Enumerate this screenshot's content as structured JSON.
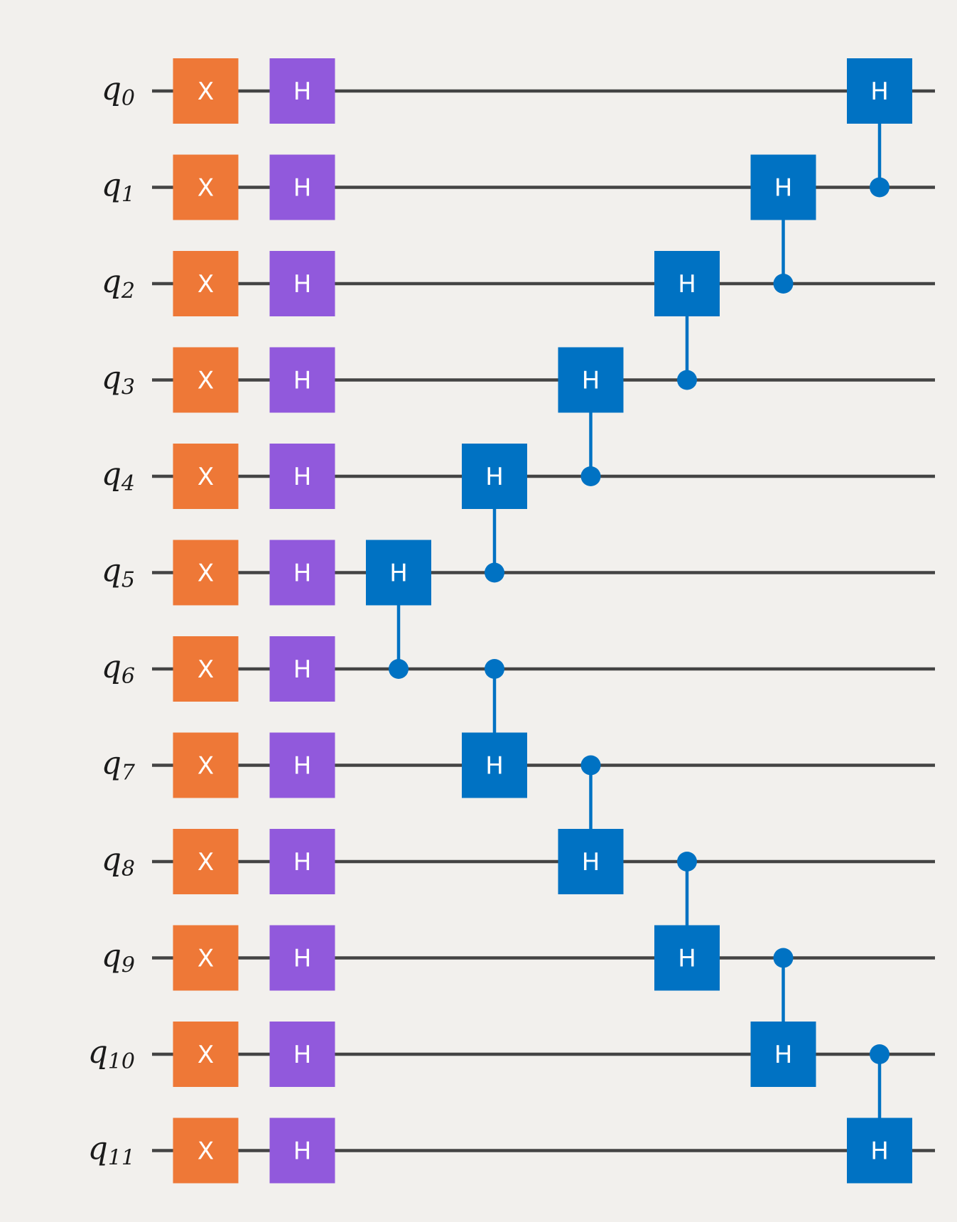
{
  "circuit": {
    "qubits": [
      {
        "base": "q",
        "sub": "0"
      },
      {
        "base": "q",
        "sub": "1"
      },
      {
        "base": "q",
        "sub": "2"
      },
      {
        "base": "q",
        "sub": "3"
      },
      {
        "base": "q",
        "sub": "4"
      },
      {
        "base": "q",
        "sub": "5"
      },
      {
        "base": "q",
        "sub": "6"
      },
      {
        "base": "q",
        "sub": "7"
      },
      {
        "base": "q",
        "sub": "8"
      },
      {
        "base": "q",
        "sub": "9"
      },
      {
        "base": "q",
        "sub": "10"
      },
      {
        "base": "q",
        "sub": "11"
      }
    ],
    "colors": {
      "background": "#f2f0ed",
      "wire": "#444444",
      "x_gate": "#ee7837",
      "h_gate": "#9159dc",
      "controlled_gate": "#0072c3",
      "gate_text": "#ffffff",
      "label_text": "#1a1a1a"
    },
    "gates": [
      {
        "label": "X",
        "qubit": 0,
        "column": 0,
        "kind": "single_x"
      },
      {
        "label": "X",
        "qubit": 1,
        "column": 0,
        "kind": "single_x"
      },
      {
        "label": "X",
        "qubit": 2,
        "column": 0,
        "kind": "single_x"
      },
      {
        "label": "X",
        "qubit": 3,
        "column": 0,
        "kind": "single_x"
      },
      {
        "label": "X",
        "qubit": 4,
        "column": 0,
        "kind": "single_x"
      },
      {
        "label": "X",
        "qubit": 5,
        "column": 0,
        "kind": "single_x"
      },
      {
        "label": "X",
        "qubit": 6,
        "column": 0,
        "kind": "single_x"
      },
      {
        "label": "X",
        "qubit": 7,
        "column": 0,
        "kind": "single_x"
      },
      {
        "label": "X",
        "qubit": 8,
        "column": 0,
        "kind": "single_x"
      },
      {
        "label": "X",
        "qubit": 9,
        "column": 0,
        "kind": "single_x"
      },
      {
        "label": "X",
        "qubit": 10,
        "column": 0,
        "kind": "single_x"
      },
      {
        "label": "X",
        "qubit": 11,
        "column": 0,
        "kind": "single_x"
      },
      {
        "label": "H",
        "qubit": 0,
        "column": 1,
        "kind": "single_h"
      },
      {
        "label": "H",
        "qubit": 1,
        "column": 1,
        "kind": "single_h"
      },
      {
        "label": "H",
        "qubit": 2,
        "column": 1,
        "kind": "single_h"
      },
      {
        "label": "H",
        "qubit": 3,
        "column": 1,
        "kind": "single_h"
      },
      {
        "label": "H",
        "qubit": 4,
        "column": 1,
        "kind": "single_h"
      },
      {
        "label": "H",
        "qubit": 5,
        "column": 1,
        "kind": "single_h"
      },
      {
        "label": "H",
        "qubit": 6,
        "column": 1,
        "kind": "single_h"
      },
      {
        "label": "H",
        "qubit": 7,
        "column": 1,
        "kind": "single_h"
      },
      {
        "label": "H",
        "qubit": 8,
        "column": 1,
        "kind": "single_h"
      },
      {
        "label": "H",
        "qubit": 9,
        "column": 1,
        "kind": "single_h"
      },
      {
        "label": "H",
        "qubit": 10,
        "column": 1,
        "kind": "single_h"
      },
      {
        "label": "H",
        "qubit": 11,
        "column": 1,
        "kind": "single_h"
      },
      {
        "label": "H",
        "qubit": 5,
        "control": 6,
        "column": 2,
        "kind": "controlled_h"
      },
      {
        "label": "H",
        "qubit": 4,
        "control": 5,
        "column": 3,
        "kind": "controlled_h"
      },
      {
        "label": "H",
        "qubit": 7,
        "control": 6,
        "column": 3,
        "kind": "controlled_h"
      },
      {
        "label": "H",
        "qubit": 3,
        "control": 4,
        "column": 4,
        "kind": "controlled_h"
      },
      {
        "label": "H",
        "qubit": 8,
        "control": 7,
        "column": 4,
        "kind": "controlled_h"
      },
      {
        "label": "H",
        "qubit": 2,
        "control": 3,
        "column": 5,
        "kind": "controlled_h"
      },
      {
        "label": "H",
        "qubit": 9,
        "control": 8,
        "column": 5,
        "kind": "controlled_h"
      },
      {
        "label": "H",
        "qubit": 1,
        "control": 2,
        "column": 6,
        "kind": "controlled_h"
      },
      {
        "label": "H",
        "qubit": 10,
        "control": 9,
        "column": 6,
        "kind": "controlled_h"
      },
      {
        "label": "H",
        "qubit": 0,
        "control": 1,
        "column": 7,
        "kind": "controlled_h"
      },
      {
        "label": "H",
        "qubit": 11,
        "control": 10,
        "column": 7,
        "kind": "controlled_h"
      }
    ]
  }
}
